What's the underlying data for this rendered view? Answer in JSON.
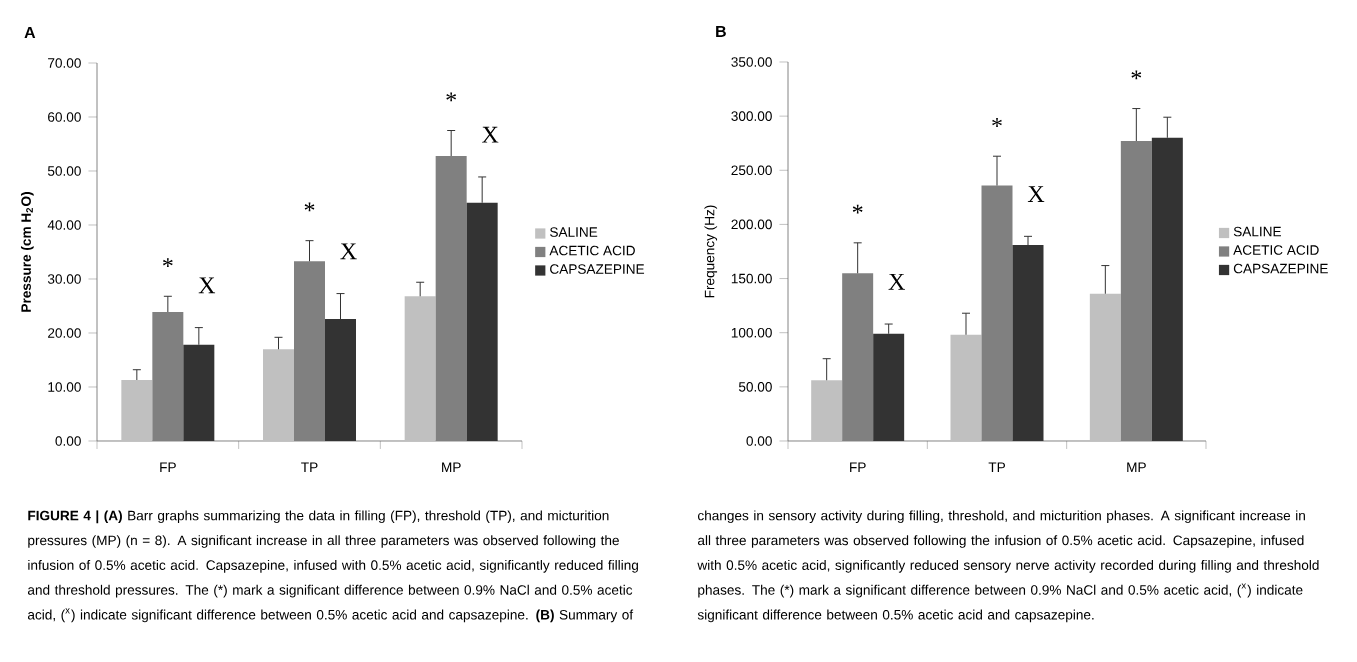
{
  "chart_data": [
    {
      "type": "bar",
      "title": "A",
      "ylabel": "Pressure (cm H$_{2}$O)",
      "categories": [
        "FP",
        "TP",
        "MP"
      ],
      "series": [
        {
          "name": "SALINE",
          "color": "#c0c0c0",
          "values": [
            11.3,
            17.0,
            26.8
          ],
          "errors": [
            1.9,
            2.2,
            2.6
          ]
        },
        {
          "name": "ACETIC ACID",
          "color": "#808080",
          "values": [
            23.9,
            33.3,
            52.8
          ],
          "errors": [
            2.9,
            3.8,
            4.7
          ]
        },
        {
          "name": "CAPSAZEPINE",
          "color": "#333333",
          "values": [
            17.8,
            22.6,
            44.1
          ],
          "errors": [
            3.2,
            4.7,
            4.8
          ]
        }
      ],
      "ylim": [
        0,
        70
      ],
      "yticks": [
        {
          "value": 0,
          "label": "0.00"
        },
        {
          "value": 10,
          "label": "10.00"
        },
        {
          "value": 20,
          "label": "20.00"
        },
        {
          "value": 30,
          "label": "30.00"
        },
        {
          "value": 40,
          "label": "40.00"
        },
        {
          "value": 50,
          "label": "50.00"
        },
        {
          "value": 60,
          "label": "60.00"
        },
        {
          "value": 70,
          "label": "70.00"
        }
      ],
      "legend": "right",
      "annotations": [
        "*",
        "X",
        "*",
        "X",
        "*",
        "X",
        "**FIGURE 4 | (A)** Barr graphs summarizing the data in filling (FP), threshold (TP), and micturition pressures (MP) (n = 8). A significant increase in all three parameters was observed following the infusion of 0.5% acetic acid. Capsazepine, infused with 0.5% acetic acid, significantly reduced filling and threshold pressures. The (*) mark a significant difference between 0.9% NaCl and 0.5% acetic acid, ($^{x}$) indicate significant difference between 0.5% acetic acid and capsazepine. **(B)** Summary of"
      ]
    },
    {
      "type": "bar",
      "title": "B",
      "ylabel": "Frequency (Hz)",
      "categories": [
        "FP",
        "TP",
        "MP"
      ],
      "series": [
        {
          "name": "SALINE",
          "color": "#c0c0c0",
          "values": [
            56,
            98,
            136
          ],
          "errors": [
            20,
            20,
            26
          ]
        },
        {
          "name": "ACETIC ACID",
          "color": "#808080",
          "values": [
            155,
            236,
            277
          ],
          "errors": [
            28,
            27,
            30
          ]
        },
        {
          "name": "CAPSAZEPINE",
          "color": "#333333",
          "values": [
            99,
            181,
            280
          ],
          "errors": [
            9,
            8,
            19
          ]
        }
      ],
      "ylim": [
        0,
        350
      ],
      "yticks": [
        {
          "value": 0,
          "label": "0.00"
        },
        {
          "value": 50,
          "label": "50.00"
        },
        {
          "value": 100,
          "label": "100.00"
        },
        {
          "value": 150,
          "label": "150.00"
        },
        {
          "value": 200,
          "label": "200.00"
        },
        {
          "value": 250,
          "label": "250.00"
        },
        {
          "value": 300,
          "label": "300.00"
        },
        {
          "value": 350,
          "label": "350.00"
        }
      ],
      "legend": "right",
      "annotations": [
        "*",
        "X",
        "*",
        "X",
        "*",
        "changes in sensory activity during filling, threshold, and micturition phases. A significant increase in all three parameters was observed following the infusion of 0.5% acetic acid. Capsazepine, infused with 0.5% acetic acid, significantly reduced sensory nerve activity recorded during filling and threshold phases. The (*) mark a significant difference between 0.9% NaCl and 0.5% acetic acid, ($^{x}$) indicate significant difference between 0.5% acetic acid and capsazepine."
      ]
    }
  ]
}
